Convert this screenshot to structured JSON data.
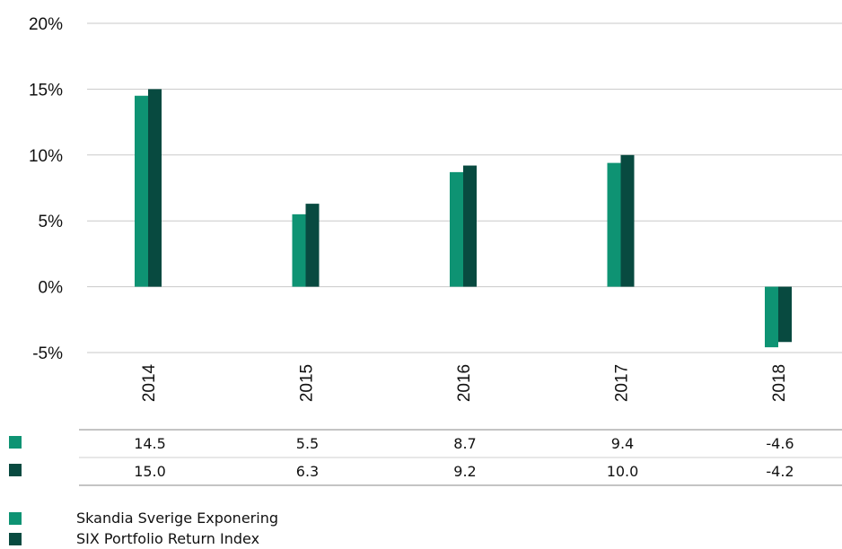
{
  "chart_data": {
    "type": "bar",
    "categories": [
      "2014",
      "2015",
      "2016",
      "2017",
      "2018"
    ],
    "series": [
      {
        "name": "Skandia Sverige Exponering",
        "values": [
          14.5,
          5.5,
          8.7,
          9.4,
          -4.6
        ],
        "color": "#0e9373"
      },
      {
        "name": "SIX Portfolio Return Index",
        "values": [
          15.0,
          6.3,
          9.2,
          10.0,
          -4.2
        ],
        "color": "#084a40"
      }
    ],
    "value_labels": [
      [
        "14.5",
        "5.5",
        "8.7",
        "9.4",
        "-4.6"
      ],
      [
        "15.0",
        "6.3",
        "9.2",
        "10.0",
        "-4.2"
      ]
    ],
    "yticks": [
      {
        "value": 20,
        "label": "20%"
      },
      {
        "value": 15,
        "label": "15%"
      },
      {
        "value": 10,
        "label": "10%"
      },
      {
        "value": 5,
        "label": "5%"
      },
      {
        "value": 0,
        "label": "0%"
      },
      {
        "value": -5,
        "label": "-5%"
      }
    ],
    "ylim": [
      -5,
      20
    ],
    "grid": true,
    "legend": "bottom-left",
    "title": "",
    "xlabel": "",
    "ylabel": ""
  }
}
